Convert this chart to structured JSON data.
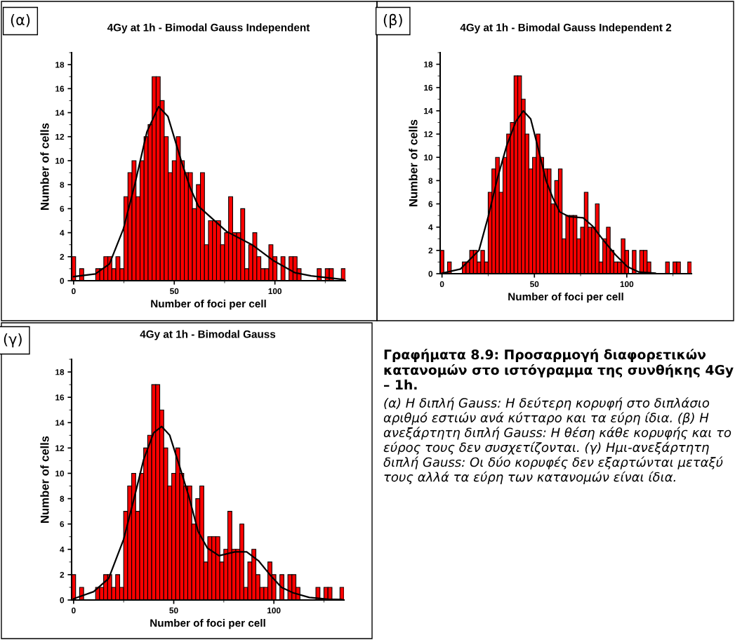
{
  "chart_data": [
    {
      "type": "histogram",
      "title": "4Gy at 1h - Bimodal Gauss Independent",
      "xlabel": "Number of foci per cell",
      "ylabel": "Number of cells",
      "annotations": [
        "(α)"
      ],
      "color": "#ff0000",
      "bins": [
        -1,
        1,
        3,
        5,
        7,
        9,
        11,
        13,
        15,
        17,
        19,
        21,
        23,
        25,
        27,
        29,
        31,
        33,
        35,
        37,
        39,
        41,
        43,
        45,
        47,
        49,
        51,
        53,
        55,
        57,
        59,
        61,
        63,
        65,
        67,
        69,
        71,
        73,
        75,
        77,
        79,
        81,
        83,
        85,
        87,
        89,
        91,
        93,
        95,
        97,
        99,
        101,
        103,
        105,
        107,
        109,
        111,
        113,
        115,
        117,
        119,
        121,
        123,
        125,
        127,
        129,
        131,
        133,
        135
      ],
      "values": [
        2,
        0,
        1,
        0,
        0,
        0,
        1,
        1,
        2,
        2,
        1,
        2,
        1,
        7,
        9,
        10,
        7,
        10,
        12,
        13,
        17,
        17,
        15,
        12,
        9,
        10,
        12,
        10,
        9,
        9,
        6,
        8,
        9,
        3,
        5,
        5,
        5,
        3,
        4,
        7,
        4,
        4,
        6,
        1,
        3,
        4,
        2,
        1,
        1,
        3,
        2,
        0,
        2,
        0,
        2,
        2,
        1,
        0,
        0,
        0,
        0,
        1,
        0,
        1,
        1,
        0,
        0,
        1
      ],
      "series": [
        {
          "type": "line",
          "color": "#000000",
          "x": [
            0,
            10.8,
            17.8,
            24.7,
            30.5,
            36.4,
            42.2,
            46.8,
            53.8,
            58,
            62,
            76,
            88.6,
            99,
            110,
            118,
            134
          ],
          "values": [
            0.34,
            0.56,
            1.4,
            4.3,
            8.1,
            12.4,
            14.5,
            13.7,
            9.8,
            7.7,
            6.2,
            4.1,
            3,
            1.7,
            0.66,
            0.4,
            0.1
          ]
        }
      ],
      "xlim": [
        -1,
        135
      ],
      "ylim": [
        0,
        19
      ],
      "xticks": [
        0,
        50,
        100
      ],
      "yticks": [
        0,
        2,
        4,
        6,
        8,
        10,
        12,
        14,
        16,
        18
      ],
      "grid": false,
      "legend": false
    },
    {
      "type": "histogram",
      "title": "4Gy at 1h - Bimodal Gauss Independent 2",
      "xlabel": "Number of foci per cell",
      "ylabel": "Number of cells",
      "annotations": [
        "(β)"
      ],
      "color": "#ff0000",
      "bins": [
        -1,
        1,
        3,
        5,
        7,
        9,
        11,
        13,
        15,
        17,
        19,
        21,
        23,
        25,
        27,
        29,
        31,
        33,
        35,
        37,
        39,
        41,
        43,
        45,
        47,
        49,
        51,
        53,
        55,
        57,
        59,
        61,
        63,
        65,
        67,
        69,
        71,
        73,
        75,
        77,
        79,
        81,
        83,
        85,
        87,
        89,
        91,
        93,
        95,
        97,
        99,
        101,
        103,
        105,
        107,
        109,
        111,
        113,
        115,
        117,
        119,
        121,
        123,
        125,
        127,
        129,
        131,
        133,
        135
      ],
      "values": [
        2,
        0,
        1,
        0,
        0,
        0,
        1,
        1,
        2,
        2,
        1,
        2,
        1,
        7,
        9,
        10,
        7,
        10,
        12,
        13,
        17,
        17,
        15,
        12,
        9,
        10,
        12,
        10,
        9,
        9,
        6,
        8,
        9,
        3,
        5,
        5,
        5,
        3,
        4,
        7,
        4,
        4,
        6,
        1,
        3,
        4,
        2,
        1,
        1,
        3,
        2,
        0,
        2,
        0,
        2,
        2,
        1,
        0,
        0,
        0,
        0,
        1,
        0,
        1,
        1,
        0,
        0,
        1
      ],
      "series": [
        {
          "type": "line",
          "color": "#000000",
          "x": [
            0,
            10,
            20,
            25,
            30,
            35,
            40,
            44,
            48,
            52,
            56.3,
            60,
            63.8,
            68.8,
            76.4,
            81.4,
            87.7,
            94,
            100.3,
            106.6,
            115.4
          ],
          "values": [
            0.04,
            0.4,
            2,
            4.9,
            8.2,
            11,
            13.1,
            14,
            13.3,
            10.8,
            8,
            6.5,
            5.3,
            4.9,
            4.8,
            4.1,
            2.8,
            1.6,
            0.6,
            0.14,
            0.04
          ]
        }
      ],
      "xlim": [
        -1,
        135
      ],
      "ylim": [
        0,
        19
      ],
      "xticks": [
        0,
        50,
        100
      ],
      "yticks": [
        0,
        2,
        4,
        6,
        8,
        10,
        12,
        14,
        16,
        18
      ],
      "grid": false,
      "legend": false
    },
    {
      "type": "histogram",
      "title": "4Gy at 1h - Bimodal Gauss",
      "xlabel": "Number of foci per cell",
      "ylabel": "Number of cells",
      "annotations": [
        "(γ)"
      ],
      "color": "#ff0000",
      "bins": [
        -1,
        1,
        3,
        5,
        7,
        9,
        11,
        13,
        15,
        17,
        19,
        21,
        23,
        25,
        27,
        29,
        31,
        33,
        35,
        37,
        39,
        41,
        43,
        45,
        47,
        49,
        51,
        53,
        55,
        57,
        59,
        61,
        63,
        65,
        67,
        69,
        71,
        73,
        75,
        77,
        79,
        81,
        83,
        85,
        87,
        89,
        91,
        93,
        95,
        97,
        99,
        101,
        103,
        105,
        107,
        109,
        111,
        113,
        115,
        117,
        119,
        121,
        123,
        125,
        127,
        129,
        131,
        133,
        135
      ],
      "values": [
        2,
        0,
        1,
        0,
        0,
        0,
        1,
        1,
        2,
        2,
        1,
        2,
        1,
        7,
        9,
        10,
        7,
        10,
        12,
        13,
        17,
        17,
        15,
        12,
        9,
        10,
        12,
        10,
        9,
        9,
        6,
        8,
        9,
        3,
        5,
        5,
        5,
        3,
        4,
        7,
        4,
        4,
        6,
        1,
        3,
        4,
        2,
        1,
        1,
        3,
        2,
        0,
        2,
        0,
        2,
        2,
        1,
        0,
        0,
        0,
        0,
        1,
        0,
        1,
        1,
        0,
        0,
        1
      ],
      "series": [
        {
          "type": "line",
          "color": "#000000",
          "x": [
            0,
            10,
            17.5,
            25,
            30,
            35,
            40,
            44,
            48,
            53,
            57.5,
            62.2,
            66.8,
            72.6,
            80.6,
            86.4,
            92.3,
            98,
            103.8,
            109.6,
            117.7,
            127,
            134
          ],
          "values": [
            0.1,
            0.66,
            1.7,
            4.8,
            7.9,
            11.1,
            13.2,
            13.7,
            13,
            10.5,
            8.2,
            5.4,
            4.1,
            3.5,
            3.8,
            3.8,
            3.1,
            2,
            1,
            0.57,
            0.2,
            0.06,
            0.04
          ]
        }
      ],
      "xlim": [
        -1,
        135
      ],
      "ylim": [
        0,
        19
      ],
      "xticks": [
        0,
        50,
        100
      ],
      "yticks": [
        0,
        2,
        4,
        6,
        8,
        10,
        12,
        14,
        16,
        18
      ],
      "grid": false,
      "legend": false
    },
    {
      "type": "other",
      "title": "Γραφήματα 8.9: Προσαρμογή διαφορετικών κατανομών στο ιστόγραμμα της συνθήκης 4Gy – 1h.",
      "annotations": [
        "(α) Η διπλή Gauss: Η δεύτερη κορυφή στο διπλάσιο αριθμό εστιών ανά κύτταρο και τα εύρη ίδια. (β) Η ανεξάρτητη διπλή Gauss: Η θέση κάθε κορυφής και το εύρος τους δεν συσχετίζονται. (γ) Ημι-ανεξάρτητη διπλή Gauss: Οι δύο κορυφές δεν εξαρτώνται μεταξύ τους αλλά τα εύρη των κατανομών είναι ίδια."
      ]
    }
  ]
}
